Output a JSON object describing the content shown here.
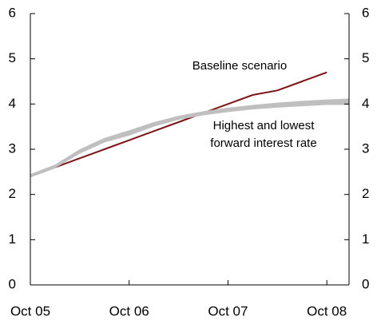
{
  "chart_data": {
    "type": "line",
    "x": [
      0,
      1,
      2,
      3,
      4,
      5,
      6,
      7,
      8,
      9,
      10,
      11,
      12,
      12.9
    ],
    "xlim": [
      0,
      12.9
    ],
    "xticks": [
      {
        "value": 0,
        "label": "Oct 05"
      },
      {
        "value": 4,
        "label": "Oct 06"
      },
      {
        "value": 8,
        "label": "Oct 07"
      },
      {
        "value": 12,
        "label": "Oct 08"
      }
    ],
    "ylim": [
      0,
      6
    ],
    "yticks": [
      0,
      1,
      2,
      3,
      4,
      5,
      6
    ],
    "y2lim": [
      0,
      6
    ],
    "y2ticks": [
      0,
      1,
      2,
      3,
      4,
      5,
      6
    ],
    "series": [
      {
        "name": "Baseline scenario",
        "color": "#7b1416",
        "values": [
          2.4,
          2.6,
          2.8,
          3.0,
          3.2,
          3.4,
          3.6,
          3.8,
          4.0,
          4.2,
          4.3,
          4.5,
          4.7,
          null
        ]
      },
      {
        "name": "Highest and lowest forward interest rate",
        "color": "#bfbfbf",
        "type": "band",
        "low": [
          2.38,
          2.58,
          2.9,
          3.15,
          3.3,
          3.5,
          3.65,
          3.75,
          3.82,
          3.88,
          3.92,
          3.95,
          3.98,
          3.98
        ],
        "high": [
          2.45,
          2.66,
          3.0,
          3.25,
          3.42,
          3.6,
          3.74,
          3.84,
          3.92,
          3.98,
          4.03,
          4.07,
          4.1,
          4.12
        ]
      }
    ]
  }
}
